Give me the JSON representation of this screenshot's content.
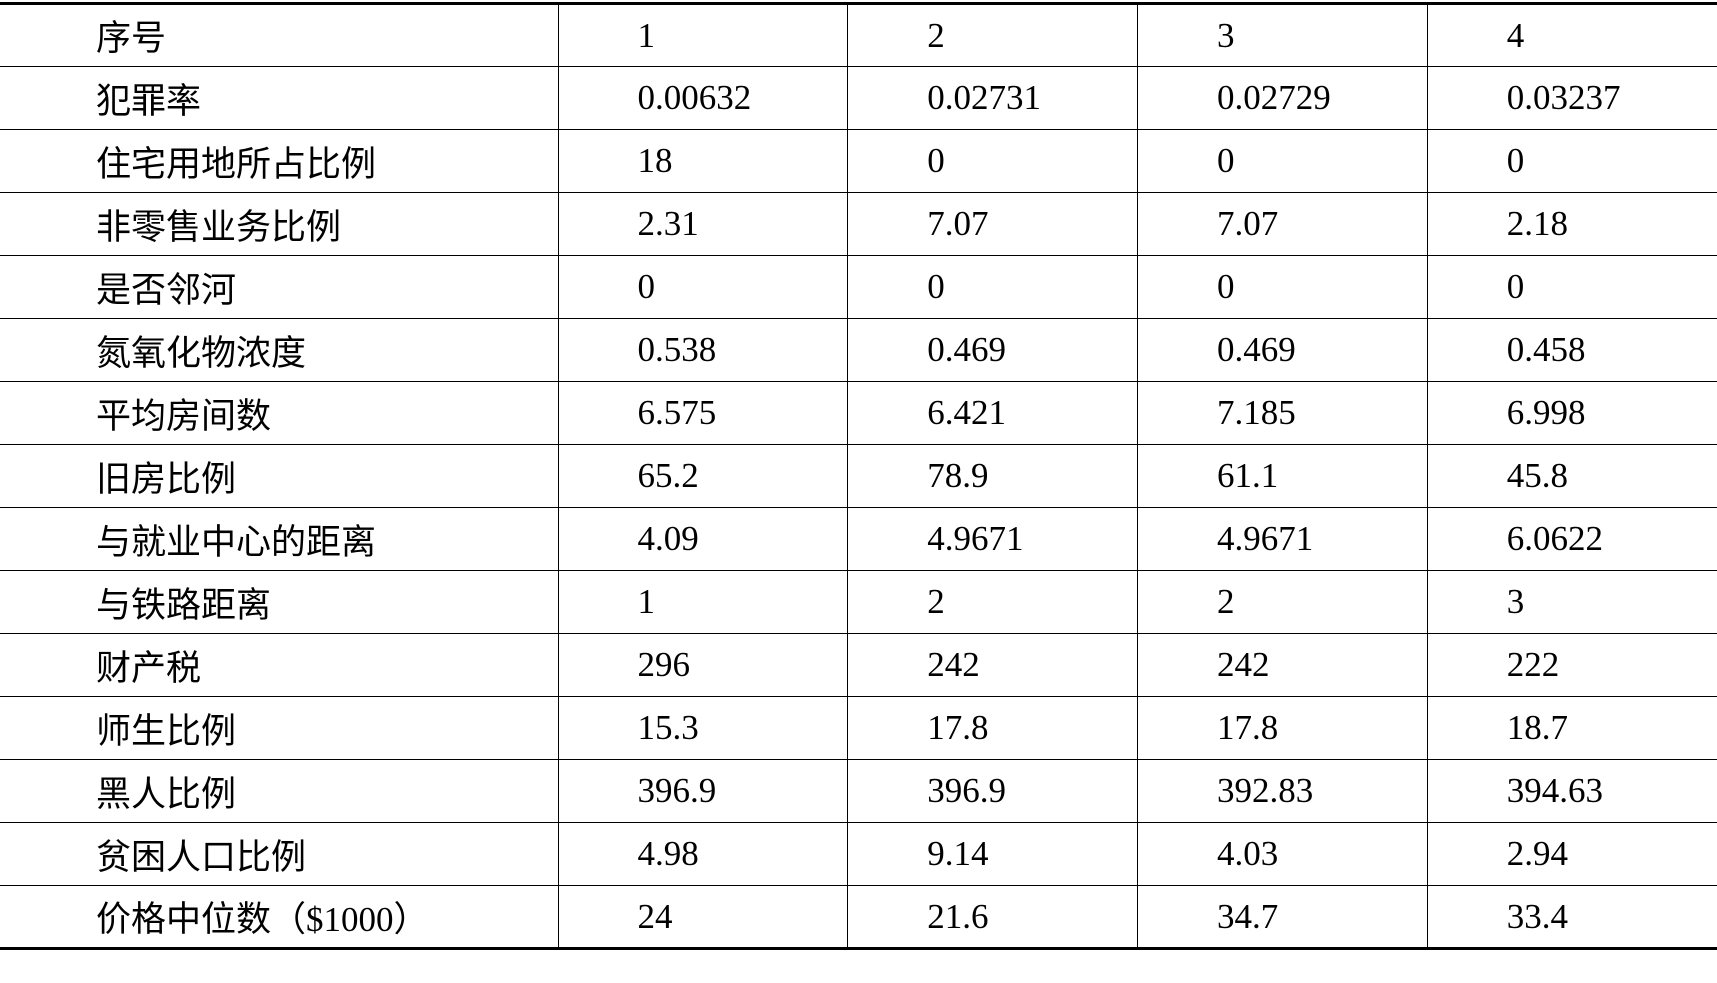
{
  "table": {
    "header": [
      "序号",
      "1",
      "2",
      "3",
      "4"
    ],
    "rows": [
      [
        "犯罪率",
        "0.00632",
        "0.02731",
        "0.02729",
        "0.03237"
      ],
      [
        "住宅用地所占比例",
        "18",
        "0",
        "0",
        "0"
      ],
      [
        "非零售业务比例",
        "2.31",
        "7.07",
        "7.07",
        "2.18"
      ],
      [
        "是否邻河",
        "0",
        "0",
        "0",
        "0"
      ],
      [
        "氮氧化物浓度",
        "0.538",
        "0.469",
        "0.469",
        "0.458"
      ],
      [
        "平均房间数",
        "6.575",
        "6.421",
        "7.185",
        "6.998"
      ],
      [
        "旧房比例",
        "65.2",
        "78.9",
        "61.1",
        "45.8"
      ],
      [
        "与就业中心的距离",
        "4.09",
        "4.9671",
        "4.9671",
        "6.0622"
      ],
      [
        "与铁路距离",
        "1",
        "2",
        "2",
        "3"
      ],
      [
        "财产税",
        "296",
        "242",
        "242",
        "222"
      ],
      [
        "师生比例",
        "15.3",
        "17.8",
        "17.8",
        "18.7"
      ],
      [
        "黑人比例",
        "396.9",
        "396.9",
        "392.83",
        "394.63"
      ],
      [
        "贫困人口比例",
        "4.98",
        "9.14",
        "4.03",
        "2.94"
      ],
      [
        "价格中位数（$1000）",
        "24",
        "21.6",
        "34.7",
        "33.4"
      ]
    ]
  }
}
